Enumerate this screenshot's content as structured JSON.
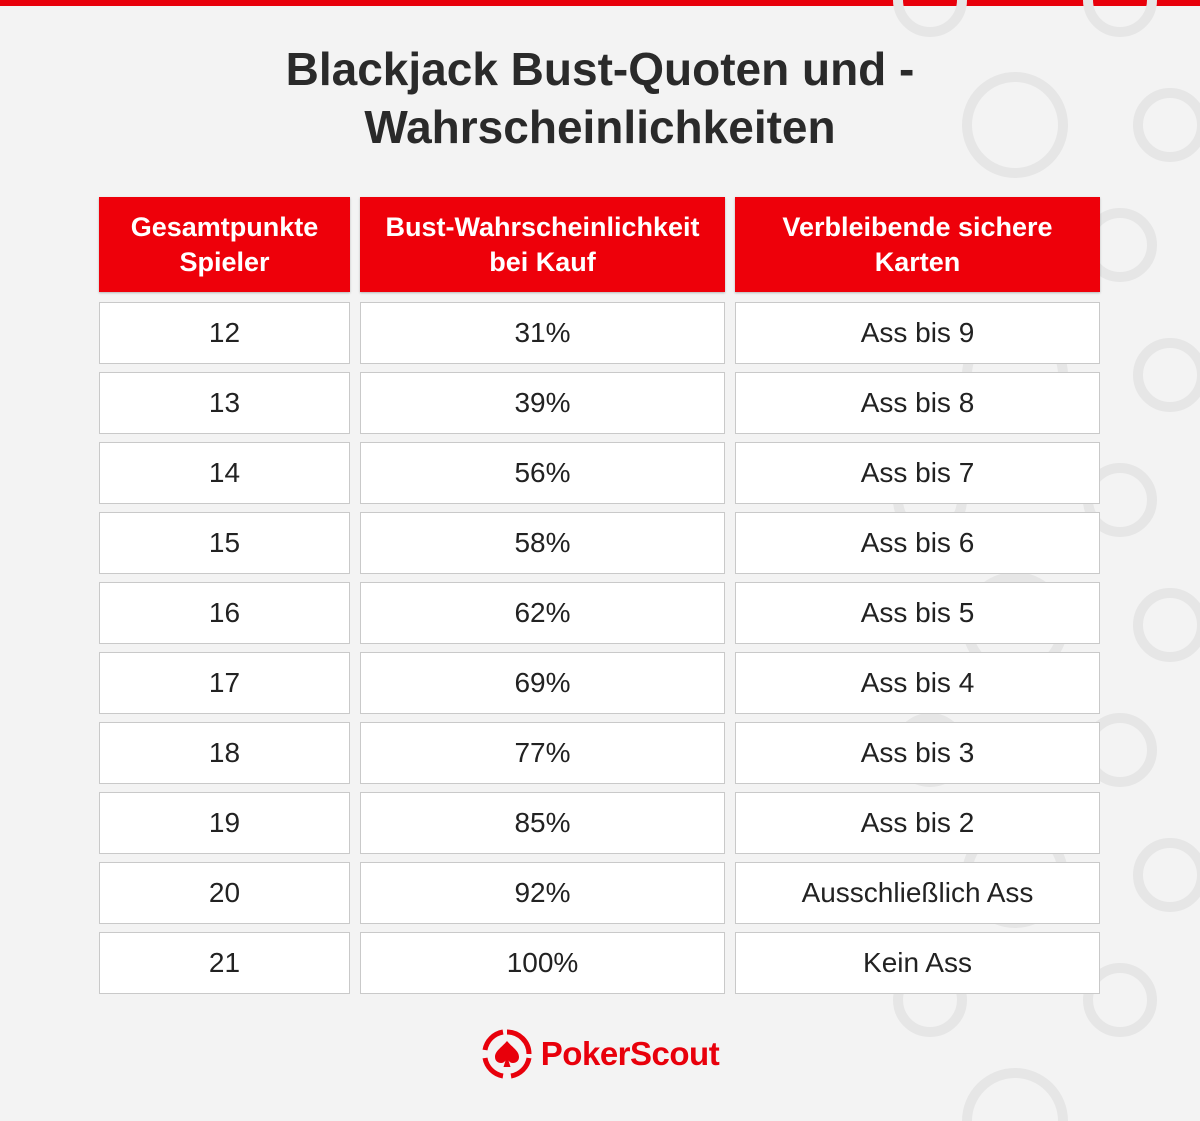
{
  "title": {
    "line1": "Blackjack Bust-Quoten und -",
    "line2": "Wahrscheinlichkeiten"
  },
  "table": {
    "headers": [
      {
        "line1": "Gesamtpunkte",
        "line2": "Spieler"
      },
      {
        "line1": "Bust-Wahrscheinlichkeit",
        "line2": "bei Kauf"
      },
      {
        "line1": "Verbleibende sichere",
        "line2": "Karten"
      }
    ],
    "rows": [
      [
        "12",
        "31%",
        "Ass bis 9"
      ],
      [
        "13",
        "39%",
        "Ass bis 8"
      ],
      [
        "14",
        "56%",
        "Ass bis 7"
      ],
      [
        "15",
        "58%",
        "Ass bis 6"
      ],
      [
        "16",
        "62%",
        "Ass bis 5"
      ],
      [
        "17",
        "69%",
        "Ass bis 4"
      ],
      [
        "18",
        "77%",
        "Ass bis 3"
      ],
      [
        "19",
        "85%",
        "Ass bis 2"
      ],
      [
        "20",
        "92%",
        "Ausschließlich Ass"
      ],
      [
        "21",
        "100%",
        "Kein Ass"
      ]
    ]
  },
  "logo": {
    "text": "PokerScout",
    "icon": "pokerscout-spade-icon"
  },
  "colors": {
    "accent": "#e8000b",
    "header_bg": "#ee000a",
    "page_bg": "#f3f3f3",
    "cell_bg": "#ffffff",
    "cell_border": "#c9c9c9"
  }
}
